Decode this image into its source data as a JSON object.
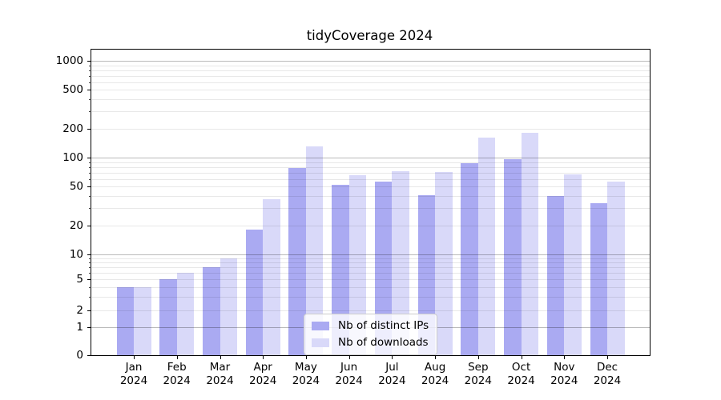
{
  "chart_data": {
    "type": "bar",
    "title": "tidyCoverage 2024",
    "categories": [
      "Jan",
      "Feb",
      "Mar",
      "Apr",
      "May",
      "Jun",
      "Jul",
      "Aug",
      "Sep",
      "Oct",
      "Nov",
      "Dec"
    ],
    "category_year": "2024",
    "series": [
      {
        "name": "Nb of distinct IPs",
        "color": "#aaaaf2",
        "values": [
          4,
          5,
          7,
          18,
          78,
          52,
          57,
          41,
          88,
          96,
          40,
          34
        ]
      },
      {
        "name": "Nb of downloads",
        "color": "#d9d9f9",
        "values": [
          4,
          6,
          9,
          37,
          130,
          66,
          72,
          71,
          160,
          180,
          67,
          57
        ]
      }
    ],
    "xlabel": "",
    "ylabel": "",
    "yscale": "symlog",
    "yticks": [
      0,
      1,
      2,
      5,
      10,
      20,
      50,
      100,
      200,
      500,
      1000
    ],
    "ylim": [
      0,
      1300
    ],
    "grid": "both",
    "legend_position": "lower center"
  }
}
